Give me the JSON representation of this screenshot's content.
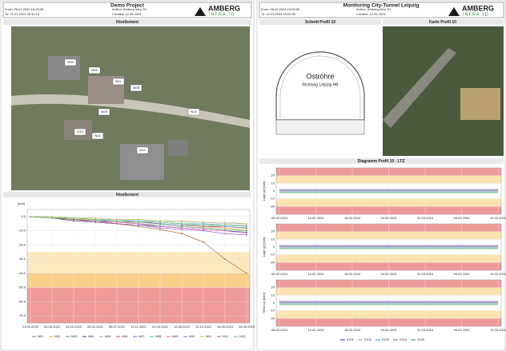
{
  "left": {
    "title": "Demo Project",
    "meta": [
      "From: 28.01.2020 16:29:49",
      "To: 21.01.2022 08:31:13",
      "Author: Amberg Infra 7D",
      "Created: 12.05.2024"
    ],
    "logo": "AMBERG",
    "logo_sub": "INFRA 7D",
    "map": {
      "title": "Nivellement",
      "points": [
        "N05",
        "N06",
        "N07",
        "N08",
        "N09",
        "N10",
        "N11",
        "N12",
        "N13"
      ]
    },
    "chart": {
      "title": "Nivellement",
      "y_unit": "[mm]",
      "ylim": [
        -75,
        5
      ],
      "yticks": [
        {
          "value": 0,
          "label": "0.0"
        },
        {
          "value": -10,
          "label": "-10.0"
        },
        {
          "value": -20,
          "label": "-20.0"
        },
        {
          "value": -30,
          "label": "-30.0"
        },
        {
          "value": -40,
          "label": "-40.0"
        },
        {
          "value": -50,
          "label": "-50.0"
        },
        {
          "value": -60,
          "label": "-60.0"
        },
        {
          "value": -70,
          "label": "-70.0"
        }
      ],
      "bands": [
        {
          "from": -25,
          "to": -40,
          "color": "#fbe8bd"
        },
        {
          "from": -40,
          "to": -50,
          "color": "#f8d08a"
        },
        {
          "from": -50,
          "to": -75,
          "color": "#ef9a9a"
        }
      ],
      "categories": [
        "23.01.2020",
        "04.06.2020",
        "15.10.2020",
        "26.02.2021",
        "08.07.2021",
        "19.11.2021",
        "01.04.2022",
        "12.08.2022",
        "23.12.2022",
        "04.05.2023",
        "14.09.2023"
      ],
      "series": [
        {
          "name": "N01",
          "color": "#808080",
          "values": [
            0,
            -1,
            -2,
            -3,
            -3,
            -4,
            -4,
            -5,
            -5,
            -6,
            -6
          ]
        },
        {
          "name": "N02",
          "color": "#f0a030",
          "values": [
            0,
            -1,
            -2,
            -2,
            -3,
            -4,
            -5,
            -6,
            -7,
            -8,
            -9
          ]
        },
        {
          "name": "N03",
          "color": "#40a040",
          "values": [
            0,
            -1,
            -2,
            -3,
            -4,
            -5,
            -6,
            -7,
            -8,
            -9,
            -10
          ]
        },
        {
          "name": "N04",
          "color": "#303090",
          "values": [
            0,
            -1,
            -3,
            -4,
            -5,
            -6,
            -7,
            -8,
            -9,
            -10,
            -11
          ]
        },
        {
          "name": "N05",
          "color": "#a0a0e0",
          "values": [
            0,
            0,
            -1,
            -2,
            -2,
            -3,
            -3,
            -4,
            -4,
            -5,
            -5
          ]
        },
        {
          "name": "N06",
          "color": "#c04040",
          "values": [
            0,
            -1,
            -2,
            -3,
            -4,
            -4,
            -5,
            -6,
            -7,
            -7,
            -8
          ]
        },
        {
          "name": "N07",
          "color": "#9050c0",
          "values": [
            0,
            -1,
            -2,
            -4,
            -5,
            -6,
            -8,
            -9,
            -10,
            -12,
            -13
          ]
        },
        {
          "name": "N08",
          "color": "#40c0c0",
          "values": [
            0,
            -1,
            -1,
            -2,
            -3,
            -3,
            -4,
            -5,
            -5,
            -6,
            -7
          ]
        },
        {
          "name": "N09",
          "color": "#e060c0",
          "values": [
            0,
            -1,
            -2,
            -3,
            -4,
            -5,
            -7,
            -8,
            -9,
            -10,
            -12
          ]
        },
        {
          "name": "N10",
          "color": "#5080e0",
          "values": [
            0,
            -1,
            -2,
            -3,
            -3,
            -4,
            -5,
            -6,
            -6,
            -7,
            -8
          ]
        },
        {
          "name": "N11",
          "color": "#c0c040",
          "values": [
            0,
            0,
            -1,
            -1,
            -2,
            -2,
            -3,
            -3,
            -4,
            -4,
            -5
          ]
        },
        {
          "name": "N12",
          "color": "#a06030",
          "values": [
            0,
            -1,
            -2,
            -3,
            -5,
            -7,
            -9,
            -12,
            -18,
            -30,
            -40
          ]
        },
        {
          "name": "N13",
          "color": "#60c060",
          "values": [
            0,
            -1,
            -1,
            -2,
            -3,
            -4,
            -4,
            -5,
            -6,
            -6,
            -7
          ]
        }
      ]
    }
  },
  "right": {
    "title": "Monitoring City-Tunnel Leipzig",
    "meta": [
      "From: 06.02.2024 19:00:00",
      "To: 12.03.2024 19:00:00",
      "Author: Amberg Infra 7D",
      "Created: 12.05.2024"
    ],
    "logo": "AMBERG",
    "logo_sub": "INFRA 7D",
    "section": {
      "title": "Schnitt Profil 10",
      "label": "Oströhre",
      "sublabel": "Richtung Leipzig HB"
    },
    "map_title": "Karte Profil 10",
    "diagram_title": "Diagramm Profil 10 - LTZ",
    "legend": [
      "2101",
      "2102",
      "2103",
      "2104",
      "2105"
    ],
    "legend_colors": [
      "#2b3a8c",
      "#9b9b9b",
      "#3aa0d0",
      "#7a50b0",
      "#40a040"
    ],
    "categories": [
      "06.02.2024",
      "12.02.2024",
      "18.02.2024",
      "24.02.2024",
      "01.03.2024",
      "06.03.2024",
      "12.03.2024"
    ],
    "charts": [
      {
        "y_label": "Lage (x) [mm]",
        "ylim": [
          -30,
          30
        ],
        "yticks": [
          -20,
          -10,
          0,
          10,
          20
        ],
        "bands": [
          {
            "from": 20,
            "to": 30,
            "color": "#ef9a9a"
          },
          {
            "from": 10,
            "to": 20,
            "color": "#fbe2b0"
          },
          {
            "from": -10,
            "to": -20,
            "color": "#fbe2b0"
          },
          {
            "from": -20,
            "to": -30,
            "color": "#ef9a9a"
          }
        ],
        "series": [
          [
            1,
            1,
            1,
            1,
            1,
            1,
            1
          ],
          [
            0,
            0,
            0,
            0,
            0,
            0,
            0
          ],
          [
            -1,
            -1,
            -1,
            -1,
            -1,
            -1,
            -1
          ],
          [
            2,
            2,
            2,
            2,
            2,
            2,
            2
          ],
          [
            -2,
            -2,
            -2,
            -2,
            -2,
            -2,
            -2
          ]
        ]
      },
      {
        "y_label": "Lage (y) [mm]",
        "ylim": [
          -30,
          30
        ],
        "yticks": [
          -20,
          -10,
          0,
          10,
          20
        ],
        "bands": [
          {
            "from": 20,
            "to": 30,
            "color": "#ef9a9a"
          },
          {
            "from": 10,
            "to": 20,
            "color": "#fbe2b0"
          },
          {
            "from": -10,
            "to": -20,
            "color": "#fbe2b0"
          },
          {
            "from": -20,
            "to": -30,
            "color": "#ef9a9a"
          }
        ],
        "series": [
          [
            1,
            1,
            1,
            1,
            1,
            1,
            1
          ],
          [
            0,
            0,
            0,
            0,
            0,
            0,
            0
          ],
          [
            -1,
            -1,
            -1,
            -1,
            -1,
            -1,
            -1
          ],
          [
            2,
            2,
            2,
            2,
            2,
            2,
            2
          ],
          [
            -2,
            -2,
            -2,
            -2,
            -2,
            -2,
            -2
          ]
        ]
      },
      {
        "y_label": "Höhe (z) [mm]",
        "ylim": [
          -30,
          30
        ],
        "yticks": [
          -20,
          -10,
          0,
          10,
          20
        ],
        "bands": [
          {
            "from": 20,
            "to": 30,
            "color": "#ef9a9a"
          },
          {
            "from": 10,
            "to": 20,
            "color": "#fbe2b0"
          },
          {
            "from": -10,
            "to": -20,
            "color": "#fbe2b0"
          },
          {
            "from": -20,
            "to": -30,
            "color": "#ef9a9a"
          }
        ],
        "series": [
          [
            1,
            1,
            1,
            1,
            1,
            1,
            1
          ],
          [
            0,
            0,
            0,
            0,
            0,
            0,
            0
          ],
          [
            -1,
            -1,
            -1,
            -1,
            -1,
            -1,
            -1
          ],
          [
            2,
            2,
            2,
            2,
            2,
            2,
            2
          ],
          [
            -2,
            -2,
            -2,
            -2,
            -2,
            -2,
            -2
          ]
        ]
      }
    ]
  }
}
